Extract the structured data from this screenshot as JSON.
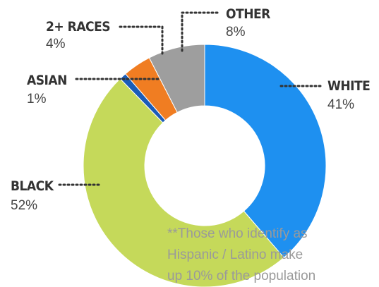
{
  "chart_data": {
    "type": "donut",
    "categories": [
      "WHITE",
      "BLACK",
      "ASIAN",
      "2+ RACES",
      "OTHER"
    ],
    "values": [
      41,
      52,
      1,
      4,
      8
    ],
    "value_labels": [
      "41%",
      "52%",
      "1%",
      "4%",
      "8%"
    ],
    "colors": [
      "#1e90f0",
      "#c5d95a",
      "#1b5cb8",
      "#f07d22",
      "#9e9e9e"
    ],
    "annotation_lines": [
      "**Those who identify as",
      "Hispanic / Latino make",
      "up 10% of the population"
    ]
  }
}
